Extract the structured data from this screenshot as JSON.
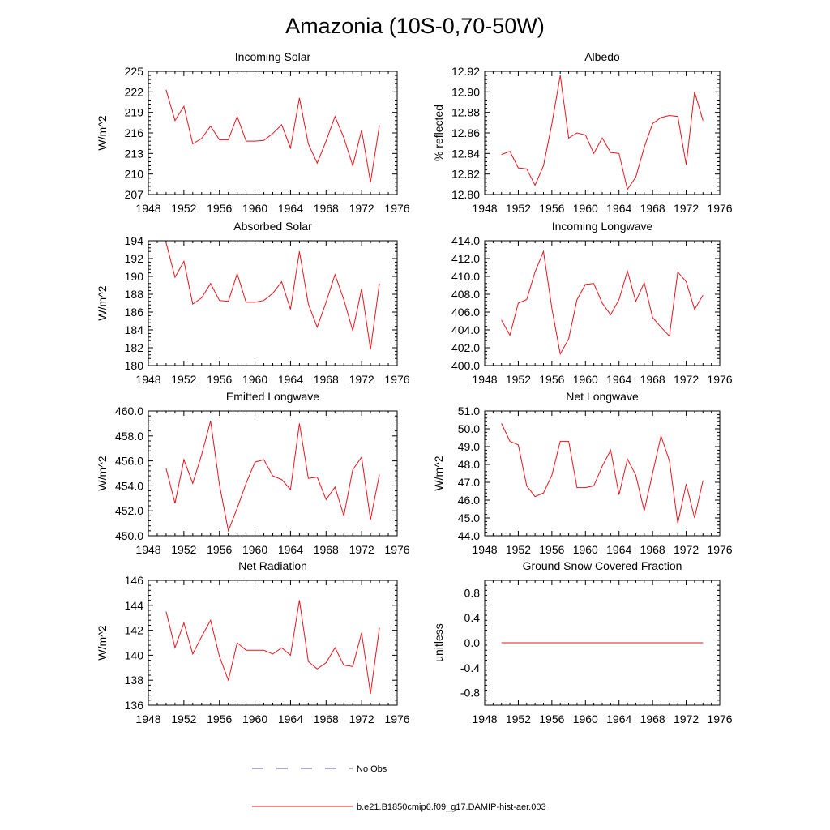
{
  "figure": {
    "title": "Amazonia (10S-0,70-50W)",
    "series_color": "#e8141e",
    "obs_color": "#5a5aa0"
  },
  "legend": {
    "obs_label": "No Obs",
    "model_label": "b.e21.B1850cmip6.f09_g17.DAMIP-hist-aer.003"
  },
  "chart_data": [
    {
      "type": "line",
      "title": "Incoming Solar",
      "ylabel": "W/m^2",
      "xlim": [
        1948,
        1976
      ],
      "xticks": [
        1948,
        1952,
        1956,
        1960,
        1964,
        1968,
        1972,
        1976
      ],
      "ylim": [
        207,
        225
      ],
      "yticks": [
        207,
        210,
        213,
        216,
        219,
        222,
        225
      ],
      "ytick_labels": [
        "207",
        "210",
        "213",
        "216",
        "219",
        "222",
        "225"
      ],
      "x": [
        1950,
        1951,
        1952,
        1953,
        1954,
        1955,
        1956,
        1957,
        1958,
        1959,
        1960,
        1961,
        1962,
        1963,
        1964,
        1965,
        1966,
        1967,
        1968,
        1969,
        1970,
        1971,
        1972,
        1973,
        1974
      ],
      "series": [
        {
          "name": "b.e21.B1850cmip6.f09_g17.DAMIP-hist-aer.003",
          "values": [
            222.3,
            217.8,
            219.9,
            214.4,
            215.2,
            217.0,
            215.0,
            215.0,
            218.4,
            214.8,
            214.8,
            214.9,
            215.9,
            217.2,
            213.8,
            221.1,
            214.4,
            211.6,
            214.8,
            218.4,
            215.3,
            211.2,
            216.4,
            208.8,
            217.1
          ]
        }
      ]
    },
    {
      "type": "line",
      "title": "Albedo",
      "ylabel": "% reflected",
      "xlim": [
        1948,
        1976
      ],
      "xticks": [
        1948,
        1952,
        1956,
        1960,
        1964,
        1968,
        1972,
        1976
      ],
      "ylim": [
        12.8,
        12.92
      ],
      "yticks": [
        12.8,
        12.82,
        12.84,
        12.86,
        12.88,
        12.9,
        12.92
      ],
      "ytick_labels": [
        "12.80",
        "12.82",
        "12.84",
        "12.86",
        "12.88",
        "12.90",
        "12.92"
      ],
      "x": [
        1950,
        1951,
        1952,
        1953,
        1954,
        1955,
        1956,
        1957,
        1958,
        1959,
        1960,
        1961,
        1962,
        1963,
        1964,
        1965,
        1966,
        1967,
        1968,
        1969,
        1970,
        1971,
        1972,
        1973,
        1974
      ],
      "series": [
        {
          "name": "b.e21.B1850cmip6.f09_g17.DAMIP-hist-aer.003",
          "values": [
            12.839,
            12.842,
            12.826,
            12.825,
            12.809,
            12.828,
            12.869,
            12.916,
            12.855,
            12.86,
            12.858,
            12.84,
            12.855,
            12.841,
            12.84,
            12.805,
            12.817,
            12.846,
            12.869,
            12.875,
            12.877,
            12.876,
            12.829,
            12.9,
            12.872
          ]
        }
      ]
    },
    {
      "type": "line",
      "title": "Absorbed Solar",
      "ylabel": "W/m^2",
      "xlim": [
        1948,
        1976
      ],
      "xticks": [
        1948,
        1952,
        1956,
        1960,
        1964,
        1968,
        1972,
        1976
      ],
      "ylim": [
        180,
        194
      ],
      "yticks": [
        180,
        182,
        184,
        186,
        188,
        190,
        192,
        194
      ],
      "ytick_labels": [
        "180",
        "182",
        "184",
        "186",
        "188",
        "190",
        "192",
        "194"
      ],
      "x": [
        1950,
        1951,
        1952,
        1953,
        1954,
        1955,
        1956,
        1957,
        1958,
        1959,
        1960,
        1961,
        1962,
        1963,
        1964,
        1965,
        1966,
        1967,
        1968,
        1969,
        1970,
        1971,
        1972,
        1973,
        1974
      ],
      "series": [
        {
          "name": "b.e21.B1850cmip6.f09_g17.DAMIP-hist-aer.003",
          "values": [
            193.8,
            189.9,
            191.7,
            186.9,
            187.6,
            189.2,
            187.3,
            187.2,
            190.3,
            187.1,
            187.1,
            187.3,
            188.1,
            189.4,
            186.3,
            192.8,
            186.9,
            184.3,
            187.1,
            190.2,
            187.4,
            183.9,
            188.6,
            181.8,
            189.2
          ]
        }
      ]
    },
    {
      "type": "line",
      "title": "Incoming Longwave",
      "ylabel": "",
      "xlim": [
        1948,
        1976
      ],
      "xticks": [
        1948,
        1952,
        1956,
        1960,
        1964,
        1968,
        1972,
        1976
      ],
      "ylim": [
        400,
        414
      ],
      "yticks": [
        400,
        402,
        404,
        406,
        408,
        410,
        412,
        414
      ],
      "ytick_labels": [
        "400.0",
        "402.0",
        "404.0",
        "406.0",
        "408.0",
        "410.0",
        "412.0",
        "414.0"
      ],
      "x": [
        1950,
        1951,
        1952,
        1953,
        1954,
        1955,
        1956,
        1957,
        1958,
        1959,
        1960,
        1961,
        1962,
        1963,
        1964,
        1965,
        1966,
        1967,
        1968,
        1969,
        1970,
        1971,
        1972,
        1973,
        1974
      ],
      "series": [
        {
          "name": "b.e21.B1850cmip6.f09_g17.DAMIP-hist-aer.003",
          "values": [
            405.1,
            403.4,
            407.0,
            407.4,
            410.5,
            412.8,
            406.4,
            401.3,
            403.0,
            407.4,
            409.1,
            409.2,
            407.0,
            405.7,
            407.4,
            410.6,
            407.2,
            409.3,
            405.4,
            404.3,
            403.3,
            410.5,
            409.4,
            406.3,
            407.9
          ]
        }
      ]
    },
    {
      "type": "line",
      "title": "Emitted Longwave",
      "ylabel": "W/m^2",
      "xlim": [
        1948,
        1976
      ],
      "xticks": [
        1948,
        1952,
        1956,
        1960,
        1964,
        1968,
        1972,
        1976
      ],
      "ylim": [
        450,
        460
      ],
      "yticks": [
        450,
        452,
        454,
        456,
        458,
        460
      ],
      "ytick_labels": [
        "450.0",
        "452.0",
        "454.0",
        "456.0",
        "458.0",
        "460.0"
      ],
      "x": [
        1950,
        1951,
        1952,
        1953,
        1954,
        1955,
        1956,
        1957,
        1958,
        1959,
        1960,
        1961,
        1962,
        1963,
        1964,
        1965,
        1966,
        1967,
        1968,
        1969,
        1970,
        1971,
        1972,
        1973,
        1974
      ],
      "series": [
        {
          "name": "b.e21.B1850cmip6.f09_g17.DAMIP-hist-aer.003",
          "values": [
            455.4,
            452.6,
            456.1,
            454.2,
            456.5,
            459.2,
            454.1,
            450.4,
            452.2,
            454.2,
            455.9,
            456.1,
            454.8,
            454.5,
            453.7,
            459.0,
            454.6,
            454.7,
            452.9,
            453.9,
            451.6,
            455.3,
            456.3,
            451.3,
            454.9
          ]
        }
      ]
    },
    {
      "type": "line",
      "title": "Net Longwave",
      "ylabel": "W/m^2",
      "xlim": [
        1948,
        1976
      ],
      "xticks": [
        1948,
        1952,
        1956,
        1960,
        1964,
        1968,
        1972,
        1976
      ],
      "ylim": [
        44,
        51
      ],
      "yticks": [
        44,
        45,
        46,
        47,
        48,
        49,
        50,
        51
      ],
      "ytick_labels": [
        "44.0",
        "45.0",
        "46.0",
        "47.0",
        "48.0",
        "49.0",
        "50.0",
        "51.0"
      ],
      "x": [
        1950,
        1951,
        1952,
        1953,
        1954,
        1955,
        1956,
        1957,
        1958,
        1959,
        1960,
        1961,
        1962,
        1963,
        1964,
        1965,
        1966,
        1967,
        1968,
        1969,
        1970,
        1971,
        1972,
        1973,
        1974
      ],
      "series": [
        {
          "name": "b.e21.B1850cmip6.f09_g17.DAMIP-hist-aer.003",
          "values": [
            50.3,
            49.3,
            49.1,
            46.8,
            46.2,
            46.4,
            47.4,
            49.3,
            49.3,
            46.7,
            46.7,
            46.8,
            47.9,
            48.8,
            46.3,
            48.3,
            47.4,
            45.4,
            47.5,
            49.6,
            48.2,
            44.7,
            46.9,
            45.0,
            47.1
          ]
        }
      ]
    },
    {
      "type": "line",
      "title": "Net Radiation",
      "ylabel": "W/m^2",
      "xlim": [
        1948,
        1976
      ],
      "xticks": [
        1948,
        1952,
        1956,
        1960,
        1964,
        1968,
        1972,
        1976
      ],
      "ylim": [
        136,
        146
      ],
      "yticks": [
        136,
        138,
        140,
        142,
        144,
        146
      ],
      "ytick_labels": [
        "136",
        "138",
        "140",
        "142",
        "144",
        "146"
      ],
      "x": [
        1950,
        1951,
        1952,
        1953,
        1954,
        1955,
        1956,
        1957,
        1958,
        1959,
        1960,
        1961,
        1962,
        1963,
        1964,
        1965,
        1966,
        1967,
        1968,
        1969,
        1970,
        1971,
        1972,
        1973,
        1974
      ],
      "series": [
        {
          "name": "b.e21.B1850cmip6.f09_g17.DAMIP-hist-aer.003",
          "values": [
            143.5,
            140.6,
            142.6,
            140.1,
            141.5,
            142.8,
            139.9,
            138.0,
            141.0,
            140.4,
            140.4,
            140.4,
            140.1,
            140.6,
            140.0,
            144.4,
            139.5,
            138.9,
            139.4,
            140.6,
            139.2,
            139.1,
            141.8,
            136.9,
            142.2
          ]
        }
      ]
    },
    {
      "type": "line",
      "title": "Ground Snow Covered Fraction",
      "ylabel": "unitless",
      "xlim": [
        1948,
        1976
      ],
      "xticks": [
        1948,
        1952,
        1956,
        1960,
        1964,
        1968,
        1972,
        1976
      ],
      "ylim": [
        -1.0,
        1.0
      ],
      "yticks": [
        -0.8,
        -0.4,
        0.0,
        0.4,
        0.8
      ],
      "ytick_labels": [
        "-0.8",
        "-0.4",
        "0.0",
        "0.4",
        "0.8"
      ],
      "x": [
        1950,
        1951,
        1952,
        1953,
        1954,
        1955,
        1956,
        1957,
        1958,
        1959,
        1960,
        1961,
        1962,
        1963,
        1964,
        1965,
        1966,
        1967,
        1968,
        1969,
        1970,
        1971,
        1972,
        1973,
        1974
      ],
      "series": [
        {
          "name": "b.e21.B1850cmip6.f09_g17.DAMIP-hist-aer.003",
          "values": [
            0,
            0,
            0,
            0,
            0,
            0,
            0,
            0,
            0,
            0,
            0,
            0,
            0,
            0,
            0,
            0,
            0,
            0,
            0,
            0,
            0,
            0,
            0,
            0,
            0
          ]
        }
      ]
    }
  ]
}
